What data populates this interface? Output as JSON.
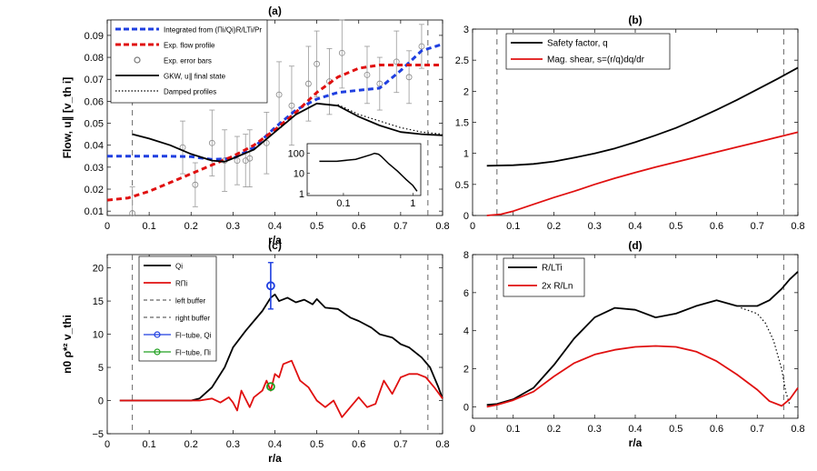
{
  "chart_data": [
    {
      "id": "a",
      "type": "line",
      "title": "(a)",
      "xlabel": "r/a",
      "ylabel": "Flow, u∥ [v_th i]",
      "xlim": [
        0,
        0.8
      ],
      "ylim": [
        0.008,
        0.097
      ],
      "xticks": [
        "0",
        "0.1",
        "0.2",
        "0.3",
        "0.4",
        "0.5",
        "0.6",
        "0.7",
        "0.8"
      ],
      "yticks": [
        "0.01",
        "0.02",
        "0.03",
        "0.04",
        "0.05",
        "0.06",
        "0.07",
        "0.08",
        "0.09"
      ],
      "buffers": [
        0.06,
        0.765
      ],
      "legend": [
        {
          "label": "Integrated from (Πi/Qi)R/LTi/Pr",
          "color": "#1f3fe0",
          "style": "dashed"
        },
        {
          "label": "Exp. flow profile",
          "color": "#e01010",
          "style": "dashed"
        },
        {
          "label": "Exp. error bars",
          "color": "#777777",
          "style": "marker"
        },
        {
          "label": "GKW, u∥ final state",
          "color": "#000000",
          "style": "solid"
        },
        {
          "label": "Damped profiles",
          "color": "#000000",
          "style": "dotted"
        }
      ],
      "series": [
        {
          "name": "Integrated",
          "color": "#1f3fe0",
          "dash": "dashed",
          "x": [
            0,
            0.05,
            0.1,
            0.15,
            0.2,
            0.25,
            0.3,
            0.35,
            0.4,
            0.45,
            0.5,
            0.55,
            0.6,
            0.65,
            0.7,
            0.75,
            0.8
          ],
          "y": [
            0.035,
            0.035,
            0.035,
            0.035,
            0.0348,
            0.0335,
            0.034,
            0.039,
            0.048,
            0.056,
            0.061,
            0.064,
            0.065,
            0.066,
            0.074,
            0.083,
            0.086
          ]
        },
        {
          "name": "Exp. flow profile",
          "color": "#e01010",
          "dash": "dashed",
          "x": [
            0,
            0.05,
            0.1,
            0.15,
            0.2,
            0.25,
            0.3,
            0.35,
            0.4,
            0.45,
            0.5,
            0.55,
            0.6,
            0.65,
            0.7,
            0.75,
            0.8
          ],
          "y": [
            0.015,
            0.016,
            0.019,
            0.023,
            0.027,
            0.031,
            0.035,
            0.04,
            0.047,
            0.055,
            0.064,
            0.071,
            0.075,
            0.0765,
            0.0765,
            0.0765,
            0.0765
          ]
        },
        {
          "name": "GKW final state",
          "color": "#000000",
          "dash": "solid",
          "x": [
            0.06,
            0.1,
            0.15,
            0.2,
            0.25,
            0.28,
            0.3,
            0.35,
            0.4,
            0.45,
            0.5,
            0.55,
            0.6,
            0.65,
            0.7,
            0.75,
            0.8
          ],
          "y": [
            0.045,
            0.043,
            0.04,
            0.036,
            0.033,
            0.0325,
            0.034,
            0.038,
            0.046,
            0.054,
            0.059,
            0.058,
            0.053,
            0.049,
            0.046,
            0.045,
            0.0445
          ]
        },
        {
          "name": "Damped profiles",
          "color": "#000000",
          "dash": "dotted",
          "x": [
            0.55,
            0.6,
            0.65,
            0.7,
            0.75,
            0.8
          ],
          "y": [
            0.0585,
            0.054,
            0.051,
            0.048,
            0.046,
            0.045
          ]
        }
      ],
      "error_bars": {
        "x": [
          0.06,
          0.18,
          0.21,
          0.25,
          0.28,
          0.31,
          0.33,
          0.34,
          0.38,
          0.41,
          0.44,
          0.48,
          0.5,
          0.53,
          0.56,
          0.62,
          0.65,
          0.69,
          0.72,
          0.75
        ],
        "y": [
          0.009,
          0.039,
          0.022,
          0.041,
          0.033,
          0.033,
          0.033,
          0.034,
          0.041,
          0.063,
          0.058,
          0.068,
          0.077,
          0.069,
          0.082,
          0.072,
          0.068,
          0.078,
          0.071,
          0.085
        ],
        "err": [
          0.012,
          0.012,
          0.01,
          0.015,
          0.014,
          0.011,
          0.012,
          0.013,
          0.014,
          0.015,
          0.018,
          0.017,
          0.015,
          0.015,
          0.016,
          0.013,
          0.012,
          0.014,
          0.012,
          0.01
        ]
      },
      "inset": {
        "type": "line",
        "xscale": "log",
        "yscale": "log",
        "xlim": [
          0.03,
          1.3
        ],
        "ylim": [
          0.8,
          300
        ],
        "xticks": [
          "0.1",
          "1"
        ],
        "yticks": [
          "1",
          "10",
          "100"
        ],
        "x": [
          0.045,
          0.08,
          0.15,
          0.25,
          0.28,
          0.32,
          0.35,
          0.45,
          0.6,
          0.8,
          1.0,
          1.15
        ],
        "y": [
          40,
          40,
          50,
          85,
          100,
          90,
          70,
          30,
          13,
          5,
          2.5,
          1.3
        ]
      }
    },
    {
      "id": "b",
      "type": "line",
      "title": "(b)",
      "xlabel": "",
      "ylabel": "",
      "xlim": [
        0,
        0.8
      ],
      "ylim": [
        0,
        3
      ],
      "xticks": [
        "0",
        "0.1",
        "0.2",
        "0.3",
        "0.4",
        "0.5",
        "0.6",
        "0.7",
        "0.8"
      ],
      "yticks": [
        "0",
        "0.5",
        "1",
        "1.5",
        "2",
        "2.5",
        "3"
      ],
      "buffers": [
        0.06,
        0.765
      ],
      "legend": [
        {
          "label": "Safety factor, q",
          "color": "#000000",
          "style": "solid"
        },
        {
          "label": "Mag. shear, s=(r/q)dq/dr",
          "color": "#e01010",
          "style": "solid"
        }
      ],
      "series": [
        {
          "name": "Safety factor, q",
          "color": "#000000",
          "dash": "solid",
          "x": [
            0.035,
            0.1,
            0.15,
            0.2,
            0.25,
            0.3,
            0.35,
            0.4,
            0.45,
            0.5,
            0.55,
            0.6,
            0.65,
            0.7,
            0.75,
            0.8
          ],
          "y": [
            0.8,
            0.81,
            0.83,
            0.87,
            0.93,
            1.0,
            1.08,
            1.18,
            1.29,
            1.41,
            1.55,
            1.7,
            1.86,
            2.03,
            2.2,
            2.38
          ]
        },
        {
          "name": "Mag. shear",
          "color": "#e01010",
          "dash": "solid",
          "x": [
            0.035,
            0.07,
            0.1,
            0.15,
            0.2,
            0.25,
            0.3,
            0.35,
            0.4,
            0.45,
            0.5,
            0.55,
            0.6,
            0.65,
            0.7,
            0.75,
            0.8
          ],
          "y": [
            0.0,
            0.02,
            0.07,
            0.18,
            0.29,
            0.39,
            0.5,
            0.6,
            0.69,
            0.78,
            0.86,
            0.94,
            1.02,
            1.1,
            1.18,
            1.26,
            1.34
          ]
        }
      ]
    },
    {
      "id": "c",
      "type": "line",
      "title": "(c)",
      "xlabel": "r/a",
      "ylabel": "n0 ρ*² v_thi",
      "xlim": [
        0,
        0.8
      ],
      "ylim": [
        -5,
        22
      ],
      "xticks": [
        "0",
        "0.1",
        "0.2",
        "0.3",
        "0.4",
        "0.5",
        "0.6",
        "0.7",
        "0.8"
      ],
      "yticks": [
        "−5",
        "0",
        "5",
        "10",
        "15",
        "20"
      ],
      "yvals": [
        -5,
        0,
        5,
        10,
        15,
        20
      ],
      "buffers": [
        0.06,
        0.765
      ],
      "legend": [
        {
          "label": "Qi",
          "color": "#000000",
          "style": "solid"
        },
        {
          "label": "RΠi",
          "color": "#e01010",
          "style": "solid"
        },
        {
          "label": "left buffer",
          "color": "#000000",
          "style": "dashed"
        },
        {
          "label": "right buffer",
          "color": "#000000",
          "style": "dashed"
        },
        {
          "label": "Fl−tube, Qi",
          "color": "#1f3fe0",
          "style": "marker"
        },
        {
          "label": "Fl−tube, Πi",
          "color": "#20a020",
          "style": "marker"
        }
      ],
      "series": [
        {
          "name": "Qi",
          "color": "#000000",
          "dash": "solid",
          "x": [
            0.03,
            0.2,
            0.22,
            0.25,
            0.28,
            0.3,
            0.33,
            0.35,
            0.37,
            0.39,
            0.4,
            0.41,
            0.43,
            0.45,
            0.47,
            0.49,
            0.5,
            0.52,
            0.55,
            0.58,
            0.6,
            0.63,
            0.65,
            0.68,
            0.7,
            0.72,
            0.75,
            0.77,
            0.79,
            0.8
          ],
          "y": [
            0,
            0,
            0.3,
            2,
            5,
            8,
            10.5,
            12,
            13.5,
            15.5,
            16,
            15,
            15.5,
            14.8,
            15.2,
            14.5,
            15.3,
            14,
            13.8,
            12.5,
            12,
            11,
            10,
            9.5,
            8.5,
            8,
            6.5,
            5,
            2,
            0.3
          ]
        },
        {
          "name": "RΠi",
          "color": "#e01010",
          "dash": "solid",
          "x": [
            0.03,
            0.22,
            0.25,
            0.27,
            0.29,
            0.3,
            0.31,
            0.32,
            0.34,
            0.35,
            0.37,
            0.38,
            0.39,
            0.4,
            0.41,
            0.42,
            0.44,
            0.46,
            0.48,
            0.5,
            0.52,
            0.54,
            0.56,
            0.58,
            0.6,
            0.62,
            0.64,
            0.66,
            0.68,
            0.7,
            0.72,
            0.74,
            0.76,
            0.78,
            0.8
          ],
          "y": [
            0,
            0,
            0.3,
            -0.3,
            0.5,
            -0.3,
            -1.5,
            1.5,
            -1,
            0.5,
            1.5,
            3,
            1.5,
            4,
            3.5,
            5.5,
            6,
            3,
            2,
            0,
            -1,
            0,
            -2.5,
            -1,
            0.5,
            -1,
            -0.5,
            3,
            1,
            3.5,
            4,
            4,
            3.5,
            2,
            0.3
          ]
        }
      ],
      "markers": [
        {
          "name": "Fl-tube Qi",
          "color": "#1f3fe0",
          "x": 0.39,
          "y": 17.3,
          "err_low": 13.8,
          "err_high": 20.8
        },
        {
          "name": "Fl-tube Pi",
          "color": "#20a020",
          "x": 0.39,
          "y": 2.1
        }
      ]
    },
    {
      "id": "d",
      "type": "line",
      "title": "(d)",
      "xlabel": "r/a",
      "ylabel": "",
      "xlim": [
        0,
        0.8
      ],
      "ylim": [
        -0.6,
        8
      ],
      "xticks": [
        "0",
        "0.1",
        "0.2",
        "0.3",
        "0.4",
        "0.5",
        "0.6",
        "0.7",
        "0.8"
      ],
      "yticks": [
        "0",
        "2",
        "4",
        "6",
        "8"
      ],
      "yvals": [
        0,
        2,
        4,
        6,
        8
      ],
      "buffers": [
        0.06,
        0.765
      ],
      "legend": [
        {
          "label": "R/LTi",
          "color": "#000000",
          "style": "solid"
        },
        {
          "label": "2x R/Ln",
          "color": "#e01010",
          "style": "solid"
        }
      ],
      "series": [
        {
          "name": "R/LTi",
          "color": "#000000",
          "dash": "solid",
          "x": [
            0.035,
            0.06,
            0.1,
            0.15,
            0.2,
            0.25,
            0.3,
            0.35,
            0.4,
            0.45,
            0.5,
            0.55,
            0.6,
            0.65,
            0.7,
            0.73,
            0.76,
            0.78,
            0.8
          ],
          "y": [
            0.1,
            0.15,
            0.4,
            1.0,
            2.2,
            3.6,
            4.7,
            5.2,
            5.1,
            4.7,
            4.9,
            5.3,
            5.6,
            5.3,
            5.3,
            5.6,
            6.2,
            6.7,
            7.1
          ]
        },
        {
          "name": "Damped R/LTi",
          "color": "#000000",
          "dash": "dotted",
          "x": [
            0.66,
            0.7,
            0.72,
            0.74,
            0.76,
            0.77,
            0.78
          ],
          "y": [
            5.2,
            4.9,
            4.4,
            3.5,
            2.0,
            0.8,
            0.1
          ]
        },
        {
          "name": "2x R/Ln",
          "color": "#e01010",
          "dash": "solid",
          "x": [
            0.035,
            0.06,
            0.1,
            0.15,
            0.2,
            0.25,
            0.3,
            0.35,
            0.4,
            0.45,
            0.5,
            0.55,
            0.6,
            0.65,
            0.7,
            0.73,
            0.76,
            0.78,
            0.8
          ],
          "y": [
            0.0,
            0.1,
            0.35,
            0.8,
            1.6,
            2.3,
            2.75,
            3.0,
            3.15,
            3.2,
            3.15,
            2.9,
            2.4,
            1.7,
            0.9,
            0.3,
            0.05,
            0.4,
            1.0
          ]
        }
      ]
    }
  ]
}
